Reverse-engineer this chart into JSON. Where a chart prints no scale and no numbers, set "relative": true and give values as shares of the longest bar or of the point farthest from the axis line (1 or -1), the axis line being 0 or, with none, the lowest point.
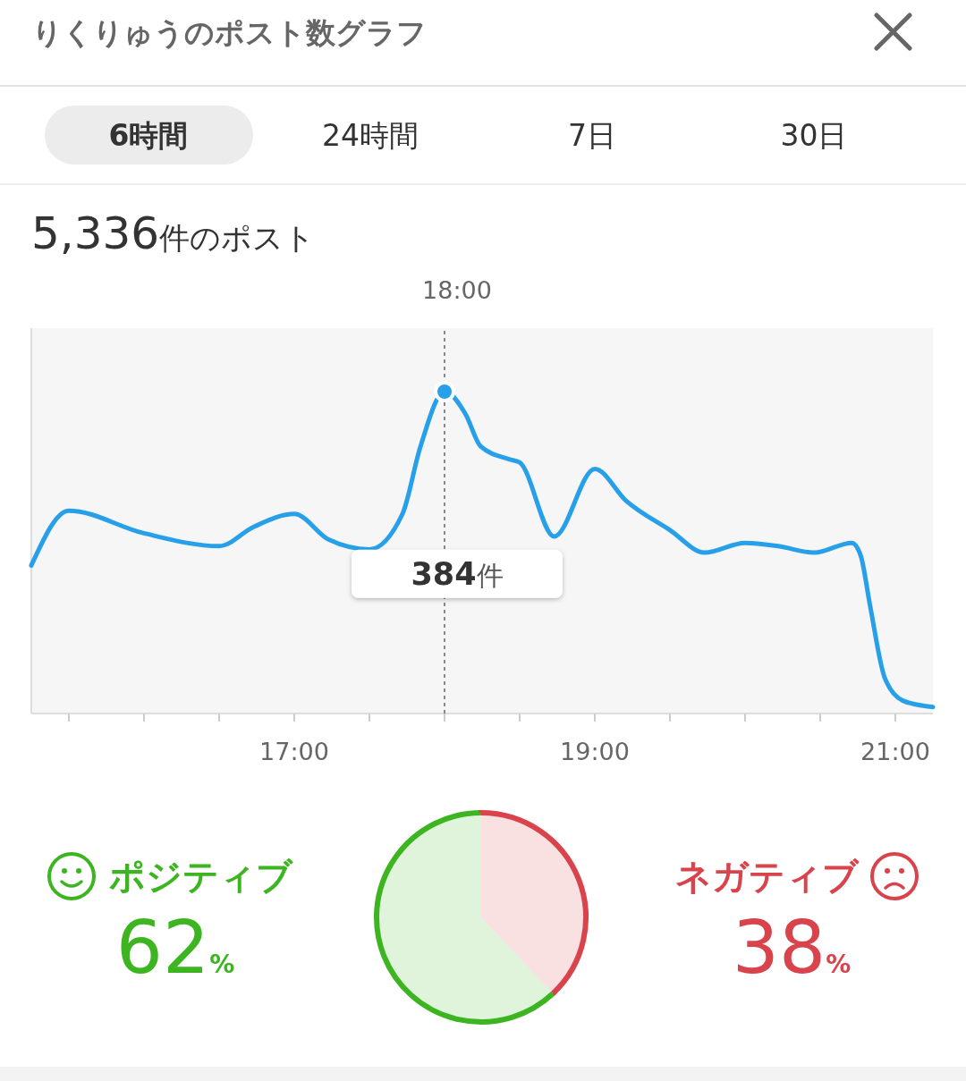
{
  "chart_data": [
    {
      "type": "line",
      "title": "りくりゅうのポスト数グラフ",
      "subtitle": "5,336件のポスト",
      "relative": true,
      "x": [
        15.25,
        15.5,
        16,
        16.5,
        16.73,
        17,
        17.23,
        17.5,
        17.72,
        17.84,
        18,
        18.14,
        18.24,
        18.43,
        18.5,
        18.73,
        19,
        19.21,
        19.5,
        19.73,
        20,
        20.22,
        20.46,
        20.71,
        20.77,
        20.83,
        20.93,
        21.05,
        21.25
      ],
      "series": [
        {
          "color": "#27a0e9",
          "values": [
            0.46,
            0.63,
            0.56,
            0.52,
            0.58,
            0.62,
            0.54,
            0.51,
            0.62,
            0.83,
            1,
            0.93,
            0.83,
            0.79,
            0.78,
            0.55,
            0.76,
            0.66,
            0.57,
            0.5,
            0.53,
            0.52,
            0.5,
            0.53,
            0.49,
            0.34,
            0.11,
            0.04,
            0.02
          ]
        },
        {
          "type": "scatter",
          "x": [
            18
          ],
          "values": [
            1
          ],
          "color": "#27a0e9",
          "marker": "circle"
        }
      ],
      "xlim": [
        15.25,
        21.25
      ],
      "xticks": [
        {
          "value": 15.5,
          "label": null
        },
        {
          "value": 16,
          "label": null
        },
        {
          "value": 16.5,
          "label": null
        },
        {
          "value": 17,
          "label": "17:00"
        },
        {
          "value": 17.5,
          "label": null
        },
        {
          "value": 18,
          "label": null
        },
        {
          "value": 18.5,
          "label": null
        },
        {
          "value": 19,
          "label": "19:00"
        },
        {
          "value": 19.5,
          "label": null
        },
        {
          "value": 20,
          "label": null
        },
        {
          "value": 20.5,
          "label": null
        },
        {
          "value": 21,
          "label": "21:00"
        }
      ],
      "tick_labels": "x",
      "ref_lines": [
        {
          "axis": "x",
          "value": 18,
          "label": "18:00",
          "line_style": "dotted",
          "color": "#888888"
        }
      ],
      "annotations": [
        "6時間",
        "24時間",
        "7日",
        "30日",
        {
          "text": "384件",
          "x": 18
        }
      ]
    },
    {
      "type": "pie",
      "categories": [
        "ポジティブ",
        "ネガティブ"
      ],
      "values": [
        62,
        38
      ],
      "colors": [
        "#3cb521",
        "#d9434c"
      ],
      "value_labels": [
        "62%",
        "38%"
      ]
    }
  ]
}
